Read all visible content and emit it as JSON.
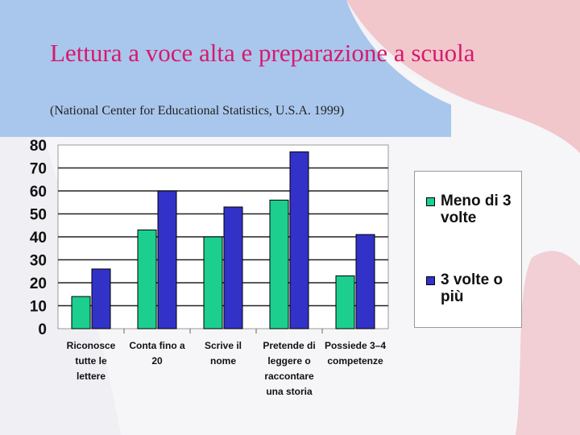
{
  "slide": {
    "title": "Lettura a voce alta e preparazione a scuola",
    "subtitle": "(National Center for Educational Statistics, U.S.A. 1999)"
  },
  "colors": {
    "series_1": "#1ccf8f",
    "series_2": "#3232c8",
    "title": "#d8196c",
    "bg_blue": "#a9c7ec",
    "bg_pink": "#f1c7cc"
  },
  "chart_data": {
    "type": "bar",
    "categories": [
      "Riconosce tutte le lettere",
      "Conta fino a 20",
      "Scrive il nome",
      "Pretende di leggere o raccontare una storia",
      "Possiede 3-4 competenze"
    ],
    "category_lines": [
      [
        "Riconosce",
        "tutte le",
        "lettere"
      ],
      [
        "Conta fino a",
        "20"
      ],
      [
        "Scrive il",
        "nome"
      ],
      [
        "Pretende di",
        "leggere o",
        "raccontare",
        "una storia"
      ],
      [
        "Possiede 3–4",
        "competenze"
      ]
    ],
    "series": [
      {
        "name": "Meno di 3 volte",
        "values": [
          14,
          43,
          40,
          56,
          23
        ]
      },
      {
        "name": "3 volte o più",
        "values": [
          26,
          60,
          53,
          77,
          41
        ]
      }
    ],
    "ylim": [
      0,
      80
    ],
    "yticks": [
      0,
      10,
      20,
      30,
      40,
      50,
      60,
      70,
      80
    ],
    "grid": true,
    "legend_placement": "right"
  }
}
